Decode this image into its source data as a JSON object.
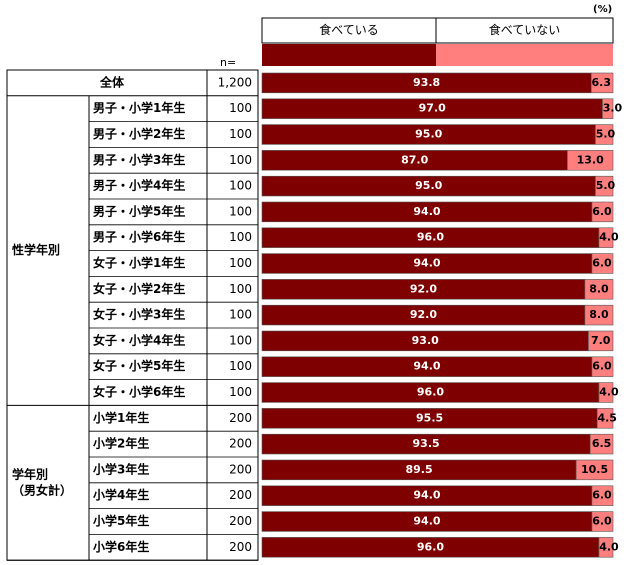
{
  "unit_label": "(%)",
  "n_header": "n=",
  "legend": [
    "食べている",
    "食べていない"
  ],
  "colors": {
    "eating": "#7f0000",
    "not_eating": "#ff7f7f",
    "border": "#555555",
    "grid": "#000000"
  },
  "groups": [
    {
      "label": "",
      "rows": [
        0
      ]
    },
    {
      "label": "性学年別",
      "rows": [
        1,
        2,
        3,
        4,
        5,
        6,
        7,
        8,
        9,
        10,
        11,
        12
      ]
    },
    {
      "label": "学年別\n（男女計）",
      "rows": [
        13,
        14,
        15,
        16,
        17,
        18
      ]
    }
  ],
  "chart_data": {
    "type": "bar",
    "stacked": true,
    "orientation": "horizontal",
    "xlim": [
      0,
      100
    ],
    "categories": [
      "全体",
      "男子・小学1年生",
      "男子・小学2年生",
      "男子・小学3年生",
      "男子・小学4年生",
      "男子・小学5年生",
      "男子・小学6年生",
      "女子・小学1年生",
      "女子・小学2年生",
      "女子・小学3年生",
      "女子・小学4年生",
      "女子・小学5年生",
      "女子・小学6年生",
      "小学1年生",
      "小学2年生",
      "小学3年生",
      "小学4年生",
      "小学5年生",
      "小学6年生"
    ],
    "n": [
      "1,200",
      "100",
      "100",
      "100",
      "100",
      "100",
      "100",
      "100",
      "100",
      "100",
      "100",
      "100",
      "100",
      "200",
      "200",
      "200",
      "200",
      "200",
      "200"
    ],
    "series": [
      {
        "name": "食べている",
        "values": [
          93.8,
          97.0,
          95.0,
          87.0,
          95.0,
          94.0,
          96.0,
          94.0,
          92.0,
          92.0,
          93.0,
          94.0,
          96.0,
          95.5,
          93.5,
          89.5,
          94.0,
          94.0,
          96.0
        ],
        "labels": [
          "93.8",
          "97.0",
          "95.0",
          "87.0",
          "95.0",
          "94.0",
          "96.0",
          "94.0",
          "92.0",
          "92.0",
          "93.0",
          "94.0",
          "96.0",
          "95.5",
          "93.5",
          "89.5",
          "94.0",
          "94.0",
          "96.0"
        ]
      },
      {
        "name": "食べていない",
        "values": [
          6.3,
          3.0,
          5.0,
          13.0,
          5.0,
          6.0,
          4.0,
          6.0,
          8.0,
          8.0,
          7.0,
          6.0,
          4.0,
          4.5,
          6.5,
          10.5,
          6.0,
          6.0,
          4.0
        ],
        "labels": [
          "6.3",
          "3.0",
          "5.0",
          "13.0",
          "5.0",
          "6.0",
          "4.0",
          "6.0",
          "8.0",
          "8.0",
          "7.0",
          "6.0",
          "4.0",
          "4.5",
          "6.5",
          "10.5",
          "6.0",
          "6.0",
          "4.0"
        ]
      }
    ]
  }
}
